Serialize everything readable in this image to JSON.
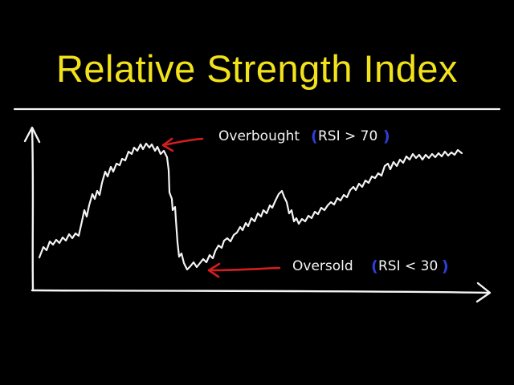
{
  "title": "Relative Strength Index",
  "annotations": {
    "overbought": {
      "label": "Overbought",
      "open_paren": "(",
      "condition": "RSI > 70",
      "close_paren": ")"
    },
    "oversold": {
      "label": "Oversold",
      "open_paren": "(",
      "condition": "RSI < 30",
      "close_paren": ")"
    }
  },
  "colors": {
    "background": "#000000",
    "title": "#f2e21b",
    "line": "#f4f4f4",
    "arrow": "#d41e1e",
    "paren": "#2d3fd4"
  }
}
